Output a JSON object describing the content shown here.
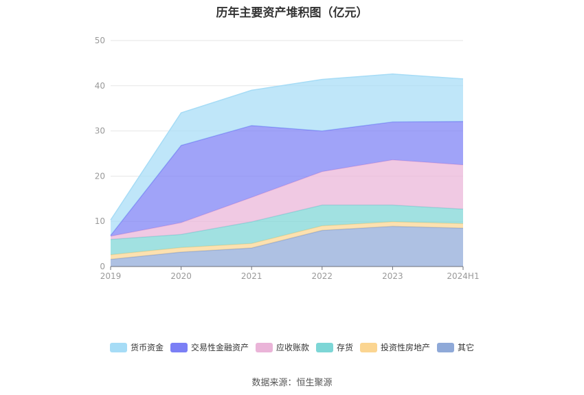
{
  "chart_data": {
    "type": "area",
    "stacked": true,
    "title": "历年主要资产堆积图（亿元）",
    "xlabel": "",
    "ylabel": "",
    "categories": [
      "2019",
      "2020",
      "2021",
      "2022",
      "2023",
      "2024H1"
    ],
    "ylim": [
      0,
      50
    ],
    "yticks": [
      0,
      10,
      20,
      30,
      40,
      50
    ],
    "grid": true,
    "legend_position": "bottom",
    "series": [
      {
        "name": "其它",
        "color": "#8fa9d8",
        "values": [
          1.6,
          3.2,
          4.1,
          8.0,
          8.9,
          8.5
        ]
      },
      {
        "name": "投资性房地产",
        "color": "#fbd591",
        "values": [
          1.0,
          1.0,
          1.0,
          1.0,
          1.0,
          1.0
        ]
      },
      {
        "name": "存货",
        "color": "#7dd6d6",
        "values": [
          3.4,
          2.9,
          4.8,
          4.6,
          3.7,
          3.2
        ]
      },
      {
        "name": "应收账款",
        "color": "#eab4d8",
        "values": [
          0.7,
          2.6,
          5.4,
          7.4,
          10.0,
          9.8
        ]
      },
      {
        "name": "交易性金融资产",
        "color": "#7b7ff5",
        "values": [
          0.2,
          17.1,
          15.9,
          9.0,
          8.4,
          9.6
        ]
      },
      {
        "name": "货币资金",
        "color": "#a6dcf6",
        "values": [
          3.4,
          7.2,
          7.8,
          11.4,
          10.6,
          9.4
        ]
      }
    ],
    "legend_order": [
      "货币资金",
      "交易性金融资产",
      "应收账款",
      "存货",
      "投资性房地产",
      "其它"
    ]
  },
  "source": "数据来源：恒生聚源"
}
